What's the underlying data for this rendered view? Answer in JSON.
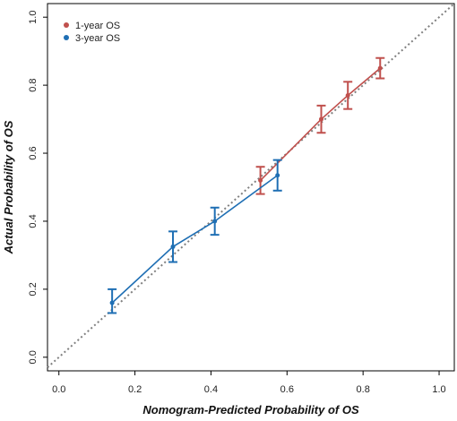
{
  "chart_data": {
    "type": "line",
    "xlabel": "Nomogram-Predicted Probability of OS",
    "ylabel": "Actual Probability of OS",
    "xlim": [
      -0.03,
      1.04
    ],
    "ylim": [
      -0.04,
      1.04
    ],
    "x_ticks": [
      0.0,
      0.2,
      0.4,
      0.6,
      0.8,
      1.0
    ],
    "y_ticks": [
      0.0,
      0.2,
      0.4,
      0.6,
      0.8,
      1.0
    ],
    "x_tick_labels": [
      "0.0",
      "0.2",
      "0.4",
      "0.6",
      "0.8",
      "1.0"
    ],
    "y_tick_labels": [
      "0.0",
      "0.2",
      "0.4",
      "0.6",
      "0.8",
      "1.0"
    ],
    "reference_line": {
      "style": "dotted",
      "color": "#808080",
      "from": [
        -0.03,
        -0.03
      ],
      "to": [
        1.04,
        1.04
      ]
    },
    "legend": {
      "position": "top-left"
    },
    "series": [
      {
        "name": "1-year OS",
        "color": "#c0504d",
        "points": [
          {
            "x": 0.53,
            "y": 0.52,
            "lo": 0.48,
            "hi": 0.56
          },
          {
            "x": 0.69,
            "y": 0.7,
            "lo": 0.66,
            "hi": 0.74
          },
          {
            "x": 0.76,
            "y": 0.77,
            "lo": 0.73,
            "hi": 0.81
          },
          {
            "x": 0.845,
            "y": 0.85,
            "lo": 0.82,
            "hi": 0.88
          }
        ]
      },
      {
        "name": "3-year OS",
        "color": "#1f6fb4",
        "points": [
          {
            "x": 0.14,
            "y": 0.16,
            "lo": 0.13,
            "hi": 0.2
          },
          {
            "x": 0.3,
            "y": 0.325,
            "lo": 0.28,
            "hi": 0.37
          },
          {
            "x": 0.41,
            "y": 0.4,
            "lo": 0.36,
            "hi": 0.44
          },
          {
            "x": 0.575,
            "y": 0.535,
            "lo": 0.49,
            "hi": 0.58
          }
        ]
      }
    ]
  }
}
